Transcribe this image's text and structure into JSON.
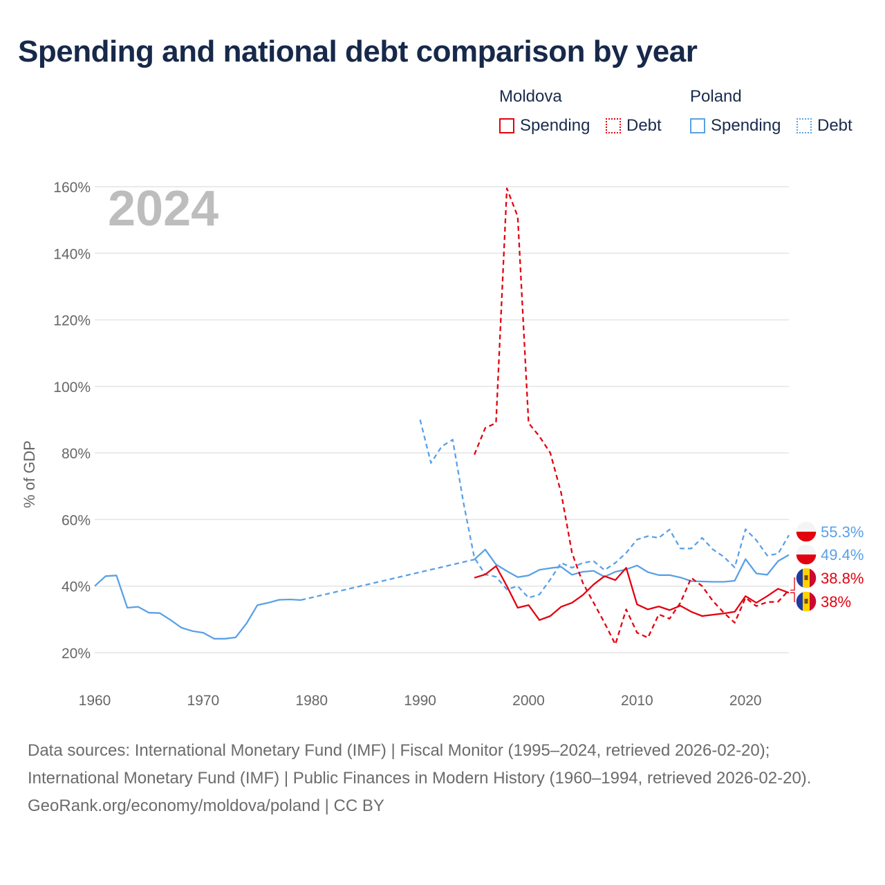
{
  "title": "Spending and national debt comparison by year",
  "legend": {
    "groups": [
      {
        "country": "Moldova",
        "items": [
          {
            "label": "Spending",
            "style": "solid",
            "color": "#e3000f"
          },
          {
            "label": "Debt",
            "style": "dotted",
            "color": "#e3000f"
          }
        ]
      },
      {
        "country": "Poland",
        "items": [
          {
            "label": "Spending",
            "style": "solid",
            "color": "#5aa0e6"
          },
          {
            "label": "Debt",
            "style": "dotted",
            "color": "#5aa0e6"
          }
        ]
      }
    ]
  },
  "chart_data": {
    "type": "line",
    "year_label": "2024",
    "ylabel": "% of GDP",
    "xlim": [
      1960,
      2024
    ],
    "ylim": [
      20,
      160
    ],
    "x_ticks": [
      1960,
      1970,
      1980,
      1990,
      2000,
      2010,
      2020
    ],
    "y_ticks": [
      20,
      40,
      60,
      80,
      100,
      120,
      140,
      160
    ],
    "y_tick_labels": [
      "20%",
      "40%",
      "60%",
      "80%",
      "100%",
      "120%",
      "140%",
      "160%"
    ],
    "gridlines": true,
    "series": [
      {
        "name": "Poland Spending",
        "color": "#5aa0e6",
        "style": "solid",
        "points": [
          [
            1960,
            40.0
          ],
          [
            1961,
            43.0
          ],
          [
            1962,
            43.2
          ],
          [
            1963,
            33.5
          ],
          [
            1964,
            33.8
          ],
          [
            1965,
            32.0
          ],
          [
            1966,
            31.9
          ],
          [
            1967,
            29.8
          ],
          [
            1968,
            27.5
          ],
          [
            1969,
            26.5
          ],
          [
            1970,
            26.0
          ],
          [
            1971,
            24.2
          ],
          [
            1972,
            24.2
          ],
          [
            1973,
            24.6
          ],
          [
            1974,
            28.8
          ],
          [
            1975,
            34.3
          ],
          [
            1976,
            35.0
          ],
          [
            1977,
            35.9
          ],
          [
            1978,
            36.0
          ],
          [
            1979,
            35.8
          ]
        ]
      },
      {
        "name": "Poland Spending (interpolated)",
        "color": "#5aa0e6",
        "style": "dashed",
        "points": [
          [
            1979,
            35.8
          ],
          [
            1995,
            48.0
          ]
        ]
      },
      {
        "name": "Poland Spending",
        "color": "#5aa0e6",
        "style": "solid",
        "points": [
          [
            1995,
            48.0
          ],
          [
            1996,
            51.0
          ],
          [
            1997,
            46.5
          ],
          [
            1998,
            44.5
          ],
          [
            1999,
            42.7
          ],
          [
            2000,
            43.2
          ],
          [
            2001,
            44.9
          ],
          [
            2002,
            45.4
          ],
          [
            2003,
            45.8
          ],
          [
            2004,
            43.4
          ],
          [
            2005,
            44.3
          ],
          [
            2006,
            44.6
          ],
          [
            2007,
            42.8
          ],
          [
            2008,
            44.3
          ],
          [
            2009,
            45.0
          ],
          [
            2010,
            46.2
          ],
          [
            2011,
            44.2
          ],
          [
            2012,
            43.3
          ],
          [
            2013,
            43.3
          ],
          [
            2014,
            42.6
          ],
          [
            2015,
            41.5
          ],
          [
            2016,
            41.4
          ],
          [
            2017,
            41.3
          ],
          [
            2018,
            41.3
          ],
          [
            2019,
            41.6
          ],
          [
            2020,
            48.1
          ],
          [
            2021,
            43.8
          ],
          [
            2022,
            43.4
          ],
          [
            2023,
            47.5
          ],
          [
            2024,
            49.4
          ]
        ]
      },
      {
        "name": "Poland Debt",
        "color": "#5aa0e6",
        "style": "dashed",
        "points": [
          [
            1990,
            90.0
          ],
          [
            1991,
            77.0
          ],
          [
            1992,
            82.0
          ],
          [
            1993,
            84.0
          ],
          [
            1994,
            65.0
          ],
          [
            1995,
            48.5
          ],
          [
            1996,
            43.5
          ],
          [
            1997,
            42.8
          ],
          [
            1998,
            39.0
          ],
          [
            1999,
            40.0
          ],
          [
            2000,
            36.5
          ],
          [
            2001,
            37.5
          ],
          [
            2002,
            42.0
          ],
          [
            2003,
            47.0
          ],
          [
            2004,
            45.5
          ],
          [
            2005,
            47.0
          ],
          [
            2006,
            47.5
          ],
          [
            2007,
            44.8
          ],
          [
            2008,
            47.0
          ],
          [
            2009,
            50.0
          ],
          [
            2010,
            54.0
          ],
          [
            2011,
            55.0
          ],
          [
            2012,
            54.5
          ],
          [
            2013,
            57.0
          ],
          [
            2014,
            51.3
          ],
          [
            2015,
            51.3
          ],
          [
            2016,
            54.5
          ],
          [
            2017,
            51.0
          ],
          [
            2018,
            48.8
          ],
          [
            2019,
            45.6
          ],
          [
            2020,
            57.1
          ],
          [
            2021,
            53.8
          ],
          [
            2022,
            49.2
          ],
          [
            2023,
            49.7
          ],
          [
            2024,
            55.3
          ]
        ]
      },
      {
        "name": "Moldova Spending",
        "color": "#e3000f",
        "style": "solid",
        "points": [
          [
            1995,
            42.5
          ],
          [
            1996,
            43.5
          ],
          [
            1997,
            46.0
          ],
          [
            1998,
            40.0
          ],
          [
            1999,
            33.5
          ],
          [
            2000,
            34.3
          ],
          [
            2001,
            29.8
          ],
          [
            2002,
            31.0
          ],
          [
            2003,
            33.8
          ],
          [
            2004,
            35.0
          ],
          [
            2005,
            37.3
          ],
          [
            2006,
            40.5
          ],
          [
            2007,
            43.0
          ],
          [
            2008,
            41.8
          ],
          [
            2009,
            45.5
          ],
          [
            2010,
            34.5
          ],
          [
            2011,
            33.0
          ],
          [
            2012,
            33.9
          ],
          [
            2013,
            32.8
          ],
          [
            2014,
            34.1
          ],
          [
            2015,
            32.3
          ],
          [
            2016,
            31.0
          ],
          [
            2017,
            31.4
          ],
          [
            2018,
            31.8
          ],
          [
            2019,
            32.3
          ],
          [
            2020,
            37.0
          ],
          [
            2021,
            35.0
          ],
          [
            2022,
            37.0
          ],
          [
            2023,
            39.2
          ],
          [
            2024,
            38.0
          ]
        ]
      },
      {
        "name": "Moldova Debt",
        "color": "#e3000f",
        "style": "dashed",
        "points": [
          [
            1995,
            79.5
          ],
          [
            1996,
            87.5
          ],
          [
            1997,
            89.0
          ],
          [
            1998,
            159.5
          ],
          [
            1999,
            151.0
          ],
          [
            2000,
            89.0
          ],
          [
            2001,
            85.0
          ],
          [
            2002,
            80.0
          ],
          [
            2003,
            68.0
          ],
          [
            2004,
            50.0
          ],
          [
            2005,
            41.0
          ],
          [
            2006,
            35.0
          ],
          [
            2007,
            29.0
          ],
          [
            2008,
            22.5
          ],
          [
            2009,
            33.0
          ],
          [
            2010,
            26.0
          ],
          [
            2011,
            24.5
          ],
          [
            2012,
            31.5
          ],
          [
            2013,
            30.2
          ],
          [
            2014,
            35.0
          ],
          [
            2015,
            42.5
          ],
          [
            2016,
            40.0
          ],
          [
            2017,
            35.5
          ],
          [
            2018,
            32.0
          ],
          [
            2019,
            29.0
          ],
          [
            2020,
            36.5
          ],
          [
            2021,
            34.0
          ],
          [
            2022,
            35.2
          ],
          [
            2023,
            35.3
          ],
          [
            2024,
            38.8
          ]
        ]
      }
    ],
    "end_labels": [
      {
        "text": "55.3%",
        "country": "Poland",
        "color": "#5aa0e6",
        "value": 55.3
      },
      {
        "text": "49.4%",
        "country": "Poland",
        "color": "#5aa0e6",
        "value": 49.4
      },
      {
        "text": "38.8%",
        "country": "Moldova",
        "color": "#e3000f",
        "value": 38.8
      },
      {
        "text": "38%",
        "country": "Moldova",
        "color": "#e3000f",
        "value": 38.0
      }
    ]
  },
  "sources": {
    "line1": "Data sources: International Monetary Fund (IMF) | Fiscal Monitor (1995–2024, retrieved 2026-02-20); International Monetary Fund (IMF) | Public Finances in Modern History (1960–1994, retrieved 2026-02-20).",
    "line2": "GeoRank.org/economy/moldova/poland | CC BY"
  }
}
